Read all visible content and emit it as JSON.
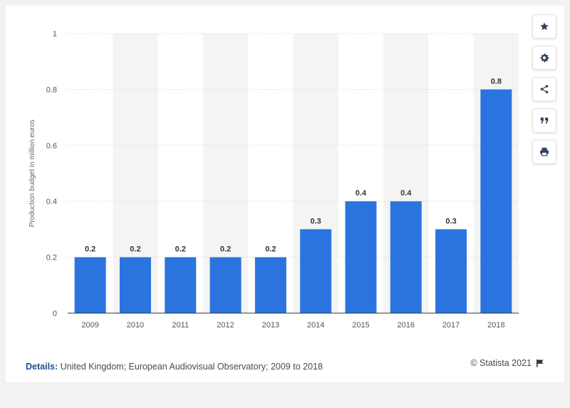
{
  "chart_data": {
    "type": "bar",
    "categories": [
      "2009",
      "2010",
      "2011",
      "2012",
      "2013",
      "2014",
      "2015",
      "2016",
      "2017",
      "2018"
    ],
    "values": [
      0.2,
      0.2,
      0.2,
      0.2,
      0.2,
      0.3,
      0.4,
      0.4,
      0.3,
      0.8
    ],
    "data_labels": [
      "0.2",
      "0.2",
      "0.2",
      "0.2",
      "0.2",
      "0.3",
      "0.4",
      "0.4",
      "0.3",
      "0.8"
    ],
    "ylabel": "Production budget in million euros",
    "xlabel": "",
    "ylim": [
      0,
      1
    ],
    "yticks": [
      "0",
      "0.2",
      "0.4",
      "0.6",
      "0.8",
      "1"
    ],
    "grid": true,
    "bar_color": "#2b74df"
  },
  "footer": {
    "details_label": "Details:",
    "details_text": "United Kingdom; European Audiovisual Observatory; 2009 to 2018",
    "credit": "© Statista 2021"
  },
  "toolbar": {
    "icons": [
      "star-icon",
      "gear-icon",
      "share-icon",
      "quote-icon",
      "print-icon"
    ]
  }
}
